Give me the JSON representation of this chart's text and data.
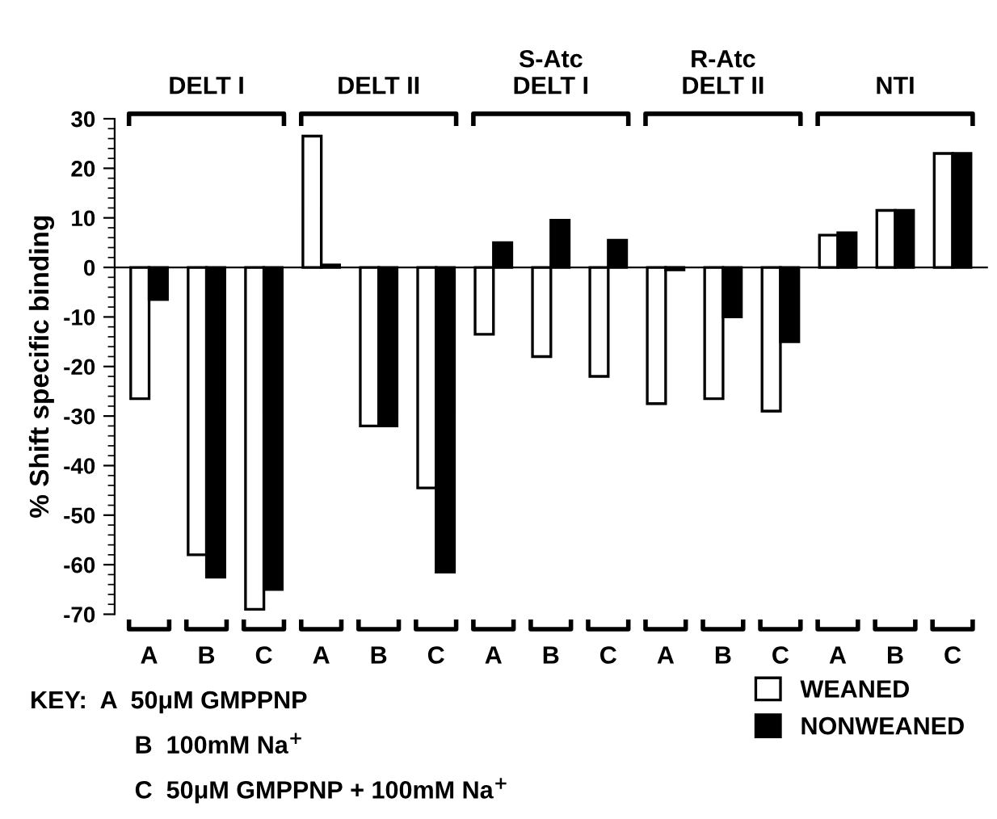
{
  "chart_data": {
    "type": "bar",
    "ylabel": "% Shift specific binding",
    "categories": [
      "A",
      "B",
      "C",
      "A",
      "B",
      "C",
      "A",
      "B",
      "C",
      "A",
      "B",
      "C",
      "A",
      "B",
      "C"
    ],
    "series": [
      {
        "name": "WEANED",
        "color": "#ffffff",
        "values": [
          -26.5,
          -58,
          -69,
          26.5,
          -32,
          -44.5,
          -13.5,
          -18,
          -22,
          -27.5,
          -26.5,
          -29,
          6.5,
          11.5,
          23
        ]
      },
      {
        "name": "NONWEANED",
        "color": "#000000",
        "values": [
          -6.5,
          -62.5,
          -65,
          0.5,
          -32,
          -61.5,
          5,
          9.5,
          5.5,
          -0.5,
          -10,
          -15,
          7,
          11.5,
          23
        ]
      }
    ],
    "ylim": [
      -70,
      30
    ],
    "yticks": [
      -70,
      -60,
      -50,
      -40,
      -30,
      -20,
      -10,
      0,
      10,
      20,
      30
    ],
    "legend": "bottom right",
    "annotations": [
      "DELT I",
      "DELT II",
      "S-Atc\nDELT I",
      "R-Atc\nDELT II",
      "NTI",
      "KEY:  A  50μM GMPPNP",
      "B  100mM Na$^{+}$",
      "C  50μM GMPPNP + 100mM Na$^{+}$"
    ]
  }
}
